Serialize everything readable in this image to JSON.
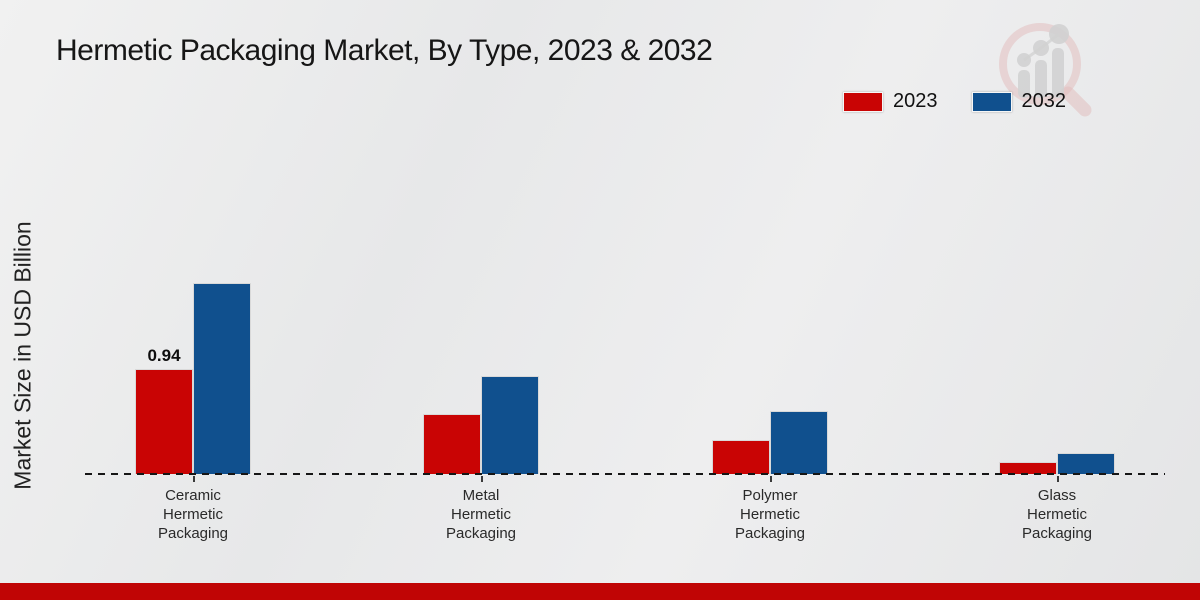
{
  "header": {
    "title": "Hermetic Packaging Market, By Type, 2023 & 2032"
  },
  "legend": {
    "items": [
      {
        "label": "2023",
        "color": "#c90404"
      },
      {
        "label": "2032",
        "color": "#10508e"
      }
    ]
  },
  "branding": {
    "logo_icon": "magnifier-growth-chart-icon"
  },
  "colors": {
    "background": "#ebebec",
    "bar_2023": "#c90404",
    "bar_2032": "#10508e",
    "footer_band": "#c00505",
    "baseline": "#161616"
  },
  "chart_data": {
    "type": "bar",
    "title": "Hermetic Packaging Market, By Type, 2023 & 2032",
    "xlabel": "",
    "ylabel": "Market Size in USD Billion",
    "categories": [
      "Ceramic Hermetic Packaging",
      "Metal Hermetic Packaging",
      "Polymer Hermetic Packaging",
      "Glass Hermetic Packaging"
    ],
    "series": [
      {
        "name": "2023",
        "color": "#c90404",
        "values": [
          0.94,
          0.54,
          0.3,
          0.11
        ]
      },
      {
        "name": "2032",
        "color": "#10508e",
        "values": [
          1.71,
          0.88,
          0.56,
          0.19
        ]
      }
    ],
    "annotations": [
      {
        "category_index": 0,
        "series_index": 0,
        "text": "0.94"
      }
    ],
    "ylim": [
      0,
      3.0
    ],
    "grid": false,
    "y_axis_ticks_visible": false,
    "baseline_style": "dashed",
    "legend_position": "top-right"
  }
}
